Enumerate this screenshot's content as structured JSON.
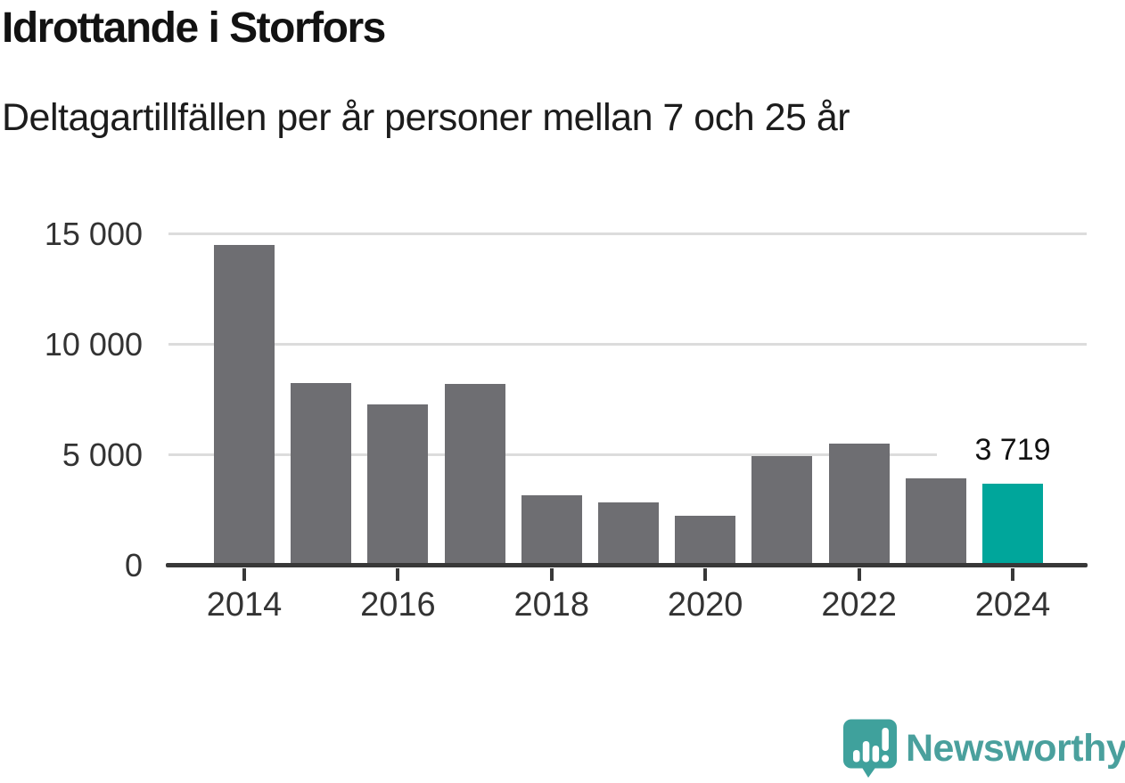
{
  "chart_data": {
    "type": "bar",
    "title": "Idrottande i Storfors",
    "subtitle": "Deltagartillfällen per år personer mellan 7 och 25 år",
    "categories": [
      "2014",
      "2015",
      "2016",
      "2017",
      "2018",
      "2019",
      "2020",
      "2021",
      "2022",
      "2023",
      "2024"
    ],
    "values": [
      14500,
      8250,
      7300,
      8200,
      3200,
      2850,
      2250,
      4950,
      5500,
      3950,
      3719
    ],
    "highlight": {
      "index": 10,
      "label": "3 719",
      "color": "#00a69b"
    },
    "bar_color": "#6e6e72",
    "ylim": [
      0,
      15000
    ],
    "yticks": [
      {
        "value": 0,
        "label": "0"
      },
      {
        "value": 5000,
        "label": "5 000"
      },
      {
        "value": 10000,
        "label": "10 000"
      },
      {
        "value": 15000,
        "label": "15 000"
      }
    ],
    "grid_values": [
      5000,
      10000,
      15000
    ],
    "x_ticks": [
      {
        "index": 0,
        "label": "2014"
      },
      {
        "index": 2,
        "label": "2016"
      },
      {
        "index": 4,
        "label": "2018"
      },
      {
        "index": 6,
        "label": "2020"
      },
      {
        "index": 8,
        "label": "2022"
      },
      {
        "index": 10,
        "label": "2024"
      }
    ],
    "grid": true,
    "grid_color": "#dcdcdc",
    "axis_color": "#383838",
    "tick_label_color": "#333333",
    "legend": "none"
  },
  "footer": {
    "brand": "Newsworthy",
    "logo_icon": "speech-bubble-bar-chart",
    "logo_icon_color": "#3fa19c",
    "brand_text_color": "#4aa09d"
  }
}
